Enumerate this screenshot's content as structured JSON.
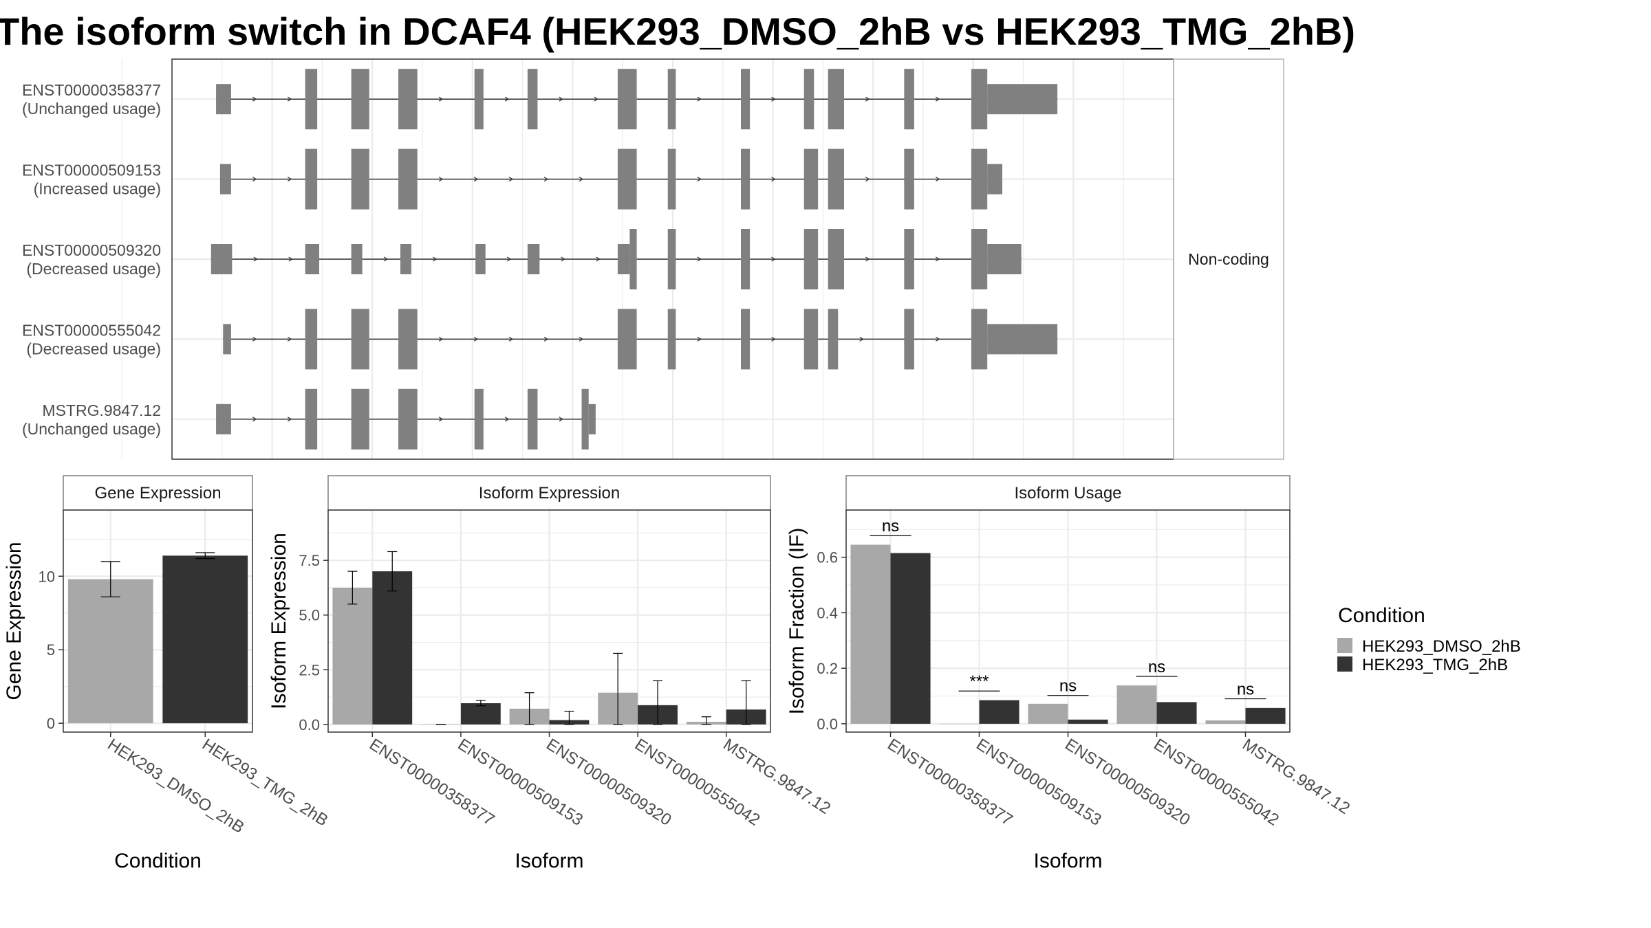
{
  "title": "The isoform switch in DCAF4 (HEK293_DMSO_2hB vs HEK293_TMG_2hB)",
  "colors": {
    "dmso": "#a8a8a8",
    "tmg": "#333333",
    "exon": "#808080",
    "grid": "#ebebeb",
    "frame": "#333333",
    "strip_border": "#7f7f7f"
  },
  "chart_data": [
    {
      "type": "gene-structure",
      "strip_label": "Non-coding",
      "x_range": [
        0,
        100
      ],
      "transcripts": [
        {
          "id": "ENST00000358377",
          "status": "(Unchanged usage)",
          "tall": [
            [
              13.3,
              14.5
            ],
            [
              17.9,
              19.7
            ],
            [
              22.6,
              24.5
            ],
            [
              30.2,
              31.1
            ],
            [
              35.5,
              36.5
            ],
            [
              44.5,
              46.4
            ],
            [
              49.5,
              50.3
            ],
            [
              56.8,
              57.7
            ],
            [
              63.1,
              64.1
            ],
            [
              65.5,
              67.1
            ],
            [
              73.1,
              74.1
            ],
            [
              79.8,
              81.4
            ]
          ],
          "short": [
            [
              4.4,
              5.9
            ],
            [
              81.4,
              88.4
            ]
          ]
        },
        {
          "id": "ENST00000509153",
          "status": "(Increased usage)",
          "tall": [
            [
              13.3,
              14.5
            ],
            [
              17.9,
              19.7
            ],
            [
              22.6,
              24.5
            ],
            [
              44.5,
              46.4
            ],
            [
              49.5,
              50.3
            ],
            [
              56.8,
              57.7
            ],
            [
              63.1,
              64.5
            ],
            [
              65.5,
              67.1
            ],
            [
              73.1,
              74.1
            ],
            [
              79.8,
              81.4
            ]
          ],
          "short": [
            [
              4.8,
              5.9
            ],
            [
              81.4,
              82.9
            ]
          ]
        },
        {
          "id": "ENST00000509320",
          "status": "(Decreased usage)",
          "tall": [
            [
              45.7,
              46.4
            ],
            [
              49.5,
              50.3
            ],
            [
              56.8,
              57.7
            ],
            [
              63.1,
              64.5
            ],
            [
              65.5,
              67.1
            ],
            [
              73.1,
              74.1
            ],
            [
              79.8,
              81.4
            ]
          ],
          "short": [
            [
              3.9,
              6.0
            ],
            [
              13.3,
              14.7
            ],
            [
              17.9,
              19.0
            ],
            [
              22.8,
              23.9
            ],
            [
              30.3,
              31.3
            ],
            [
              35.5,
              36.7
            ],
            [
              44.5,
              45.7
            ],
            [
              81.4,
              84.8
            ]
          ]
        },
        {
          "id": "ENST00000555042",
          "status": "(Decreased usage)",
          "tall": [
            [
              13.3,
              14.5
            ],
            [
              17.9,
              19.7
            ],
            [
              22.6,
              24.5
            ],
            [
              44.5,
              46.4
            ],
            [
              49.5,
              50.3
            ],
            [
              56.8,
              57.7
            ],
            [
              63.1,
              64.5
            ],
            [
              65.5,
              66.5
            ],
            [
              73.1,
              74.1
            ],
            [
              79.8,
              81.4
            ]
          ],
          "short": [
            [
              5.1,
              5.9
            ],
            [
              81.4,
              88.4
            ]
          ]
        },
        {
          "id": "MSTRG.9847.12",
          "status": "(Unchanged usage)",
          "tall": [
            [
              13.3,
              14.5
            ],
            [
              17.9,
              19.7
            ],
            [
              22.6,
              24.5
            ],
            [
              30.2,
              31.1
            ],
            [
              35.5,
              36.5
            ],
            [
              40.9,
              41.6
            ]
          ],
          "short": [
            [
              4.4,
              5.9
            ],
            [
              41.6,
              42.3
            ]
          ]
        }
      ]
    },
    {
      "type": "bar",
      "panel": "Gene Expression",
      "xlabel": "Condition",
      "ylabel": "Gene Expression",
      "categories": [
        "HEK293_DMSO_2hB",
        "HEK293_TMG_2hB"
      ],
      "values": [
        9.8,
        11.4
      ],
      "errors": [
        [
          8.6,
          11.0
        ],
        [
          11.2,
          11.6
        ]
      ],
      "ylim": [
        -0.6,
        14.5
      ],
      "yticks": [
        0,
        5,
        10
      ],
      "ytick_labels": [
        "0",
        "5",
        "10"
      ]
    },
    {
      "type": "bar",
      "panel": "Isoform Expression",
      "xlabel": "Isoform",
      "ylabel": "Isoform Expression",
      "categories": [
        "ENST00000358377",
        "ENST00000509153",
        "ENST00000509320",
        "ENST00000555042",
        "MSTRG.9847.12"
      ],
      "series": [
        {
          "name": "HEK293_DMSO_2hB",
          "values": [
            6.25,
            0.0,
            0.72,
            1.45,
            0.12
          ],
          "errors": [
            [
              5.5,
              7.0
            ],
            [
              0.0,
              0.0
            ],
            [
              0.0,
              1.45
            ],
            [
              0.0,
              3.25
            ],
            [
              0.0,
              0.35
            ]
          ]
        },
        {
          "name": "HEK293_TMG_2hB",
          "values": [
            7.0,
            0.97,
            0.2,
            0.88,
            0.68
          ],
          "errors": [
            [
              6.1,
              7.9
            ],
            [
              0.85,
              1.1
            ],
            [
              0.0,
              0.6
            ],
            [
              0.0,
              2.0
            ],
            [
              0.0,
              2.0
            ]
          ]
        }
      ],
      "ylim": [
        -0.35,
        9.8
      ],
      "yticks": [
        0,
        2.5,
        5,
        7.5
      ],
      "ytick_labels": [
        "0.0",
        "2.5",
        "5.0",
        "7.5"
      ]
    },
    {
      "type": "bar",
      "panel": "Isoform Usage",
      "xlabel": "Isoform",
      "ylabel": "Isoform Fraction (IF)",
      "categories": [
        "ENST00000358377",
        "ENST00000509153",
        "ENST00000509320",
        "ENST00000555042",
        "MSTRG.9847.12"
      ],
      "series": [
        {
          "name": "HEK293_DMSO_2hB",
          "values": [
            0.645,
            0.0,
            0.072,
            0.138,
            0.012
          ]
        },
        {
          "name": "HEK293_TMG_2hB",
          "values": [
            0.615,
            0.085,
            0.015,
            0.078,
            0.057
          ]
        }
      ],
      "significance": [
        {
          "label": "ns",
          "line_y": 0.678
        },
        {
          "label": "***",
          "line_y": 0.118
        },
        {
          "label": "ns",
          "line_y": 0.102
        },
        {
          "label": "ns",
          "line_y": 0.171
        },
        {
          "label": "ns",
          "line_y": 0.09
        }
      ],
      "ylim": [
        -0.03,
        0.77
      ],
      "yticks": [
        0,
        0.2,
        0.4,
        0.6
      ],
      "ytick_labels": [
        "0.0",
        "0.2",
        "0.4",
        "0.6"
      ]
    }
  ],
  "legend": {
    "title": "Condition",
    "items": [
      "HEK293_DMSO_2hB",
      "HEK293_TMG_2hB"
    ]
  }
}
